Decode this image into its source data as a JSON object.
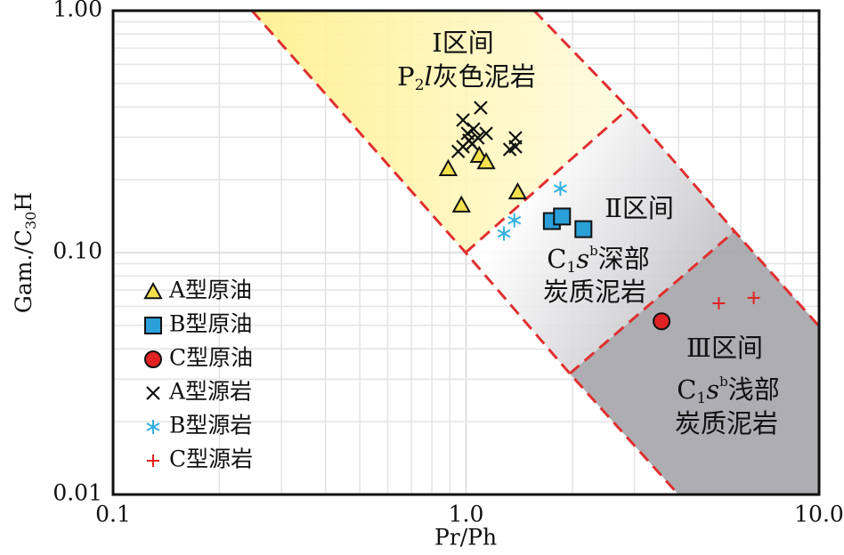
{
  "chart_data": {
    "type": "scatter",
    "x_label": "Pr/Ph",
    "y_label": [
      "Gam./C",
      "30",
      "H"
    ],
    "xscale": "log",
    "yscale": "log",
    "xlim": [
      0.1,
      10
    ],
    "ylim": [
      0.01,
      1
    ],
    "xticks": [
      0.1,
      {
        "value": 1,
        "label": "1.0"
      },
      {
        "value": 10,
        "label": "10.0"
      }
    ],
    "yticks": [
      0.01,
      {
        "value": 0.1,
        "label": "0.10"
      },
      {
        "value": 1,
        "label": "1.00"
      }
    ],
    "grid": true,
    "legend": "lower left",
    "zones": [
      {
        "name": "Ⅰ区间",
        "rock": [
          "P",
          "2",
          "l",
          "灰色泥岩"
        ]
      },
      {
        "name": "Ⅱ区间",
        "rock": [
          "C",
          "1",
          "s",
          "b",
          "深部"
        ],
        "rock2": "炭质泥岩"
      },
      {
        "name": "Ⅲ区间",
        "rock": [
          "C",
          "1",
          "s",
          "b",
          "浅部"
        ],
        "rock2": "炭质泥岩"
      }
    ],
    "series": [
      {
        "name": "A型原油",
        "marker": "triangle",
        "color": "#f3e04c",
        "x": [
          0.89,
          0.97,
          1.09,
          1.14,
          1.4
        ],
        "values": [
          0.222,
          0.157,
          0.252,
          0.237,
          0.178
        ]
      },
      {
        "name": "B型原油",
        "marker": "square",
        "color": "#2a9fd8",
        "x": [
          1.75,
          1.87,
          2.15
        ],
        "values": [
          0.135,
          0.141,
          0.125
        ]
      },
      {
        "name": "C型原油",
        "marker": "circle",
        "color": "#e02222",
        "x": [
          3.58
        ],
        "values": [
          0.052
        ]
      },
      {
        "name": "A型源岩",
        "marker": "x",
        "color": "#111111",
        "x": [
          0.98,
          1.1,
          1.02,
          0.98,
          1.01,
          1.05,
          1.08,
          1.14,
          1.04,
          1.38,
          1.33,
          1.38,
          0.95
        ],
        "values": [
          0.353,
          0.397,
          0.291,
          0.274,
          0.311,
          0.324,
          0.298,
          0.311,
          0.281,
          0.298,
          0.267,
          0.274,
          0.262
        ]
      },
      {
        "name": "B型源岩",
        "marker": "asterisk",
        "color": "#33b0e0",
        "x": [
          1.85,
          1.37,
          1.28
        ],
        "values": [
          0.184,
          0.136,
          0.12
        ]
      },
      {
        "name": "C型源岩",
        "marker": "plus",
        "color": "#e02222",
        "x": [
          5.2,
          6.53
        ],
        "values": [
          0.0617,
          0.065
        ]
      }
    ]
  }
}
